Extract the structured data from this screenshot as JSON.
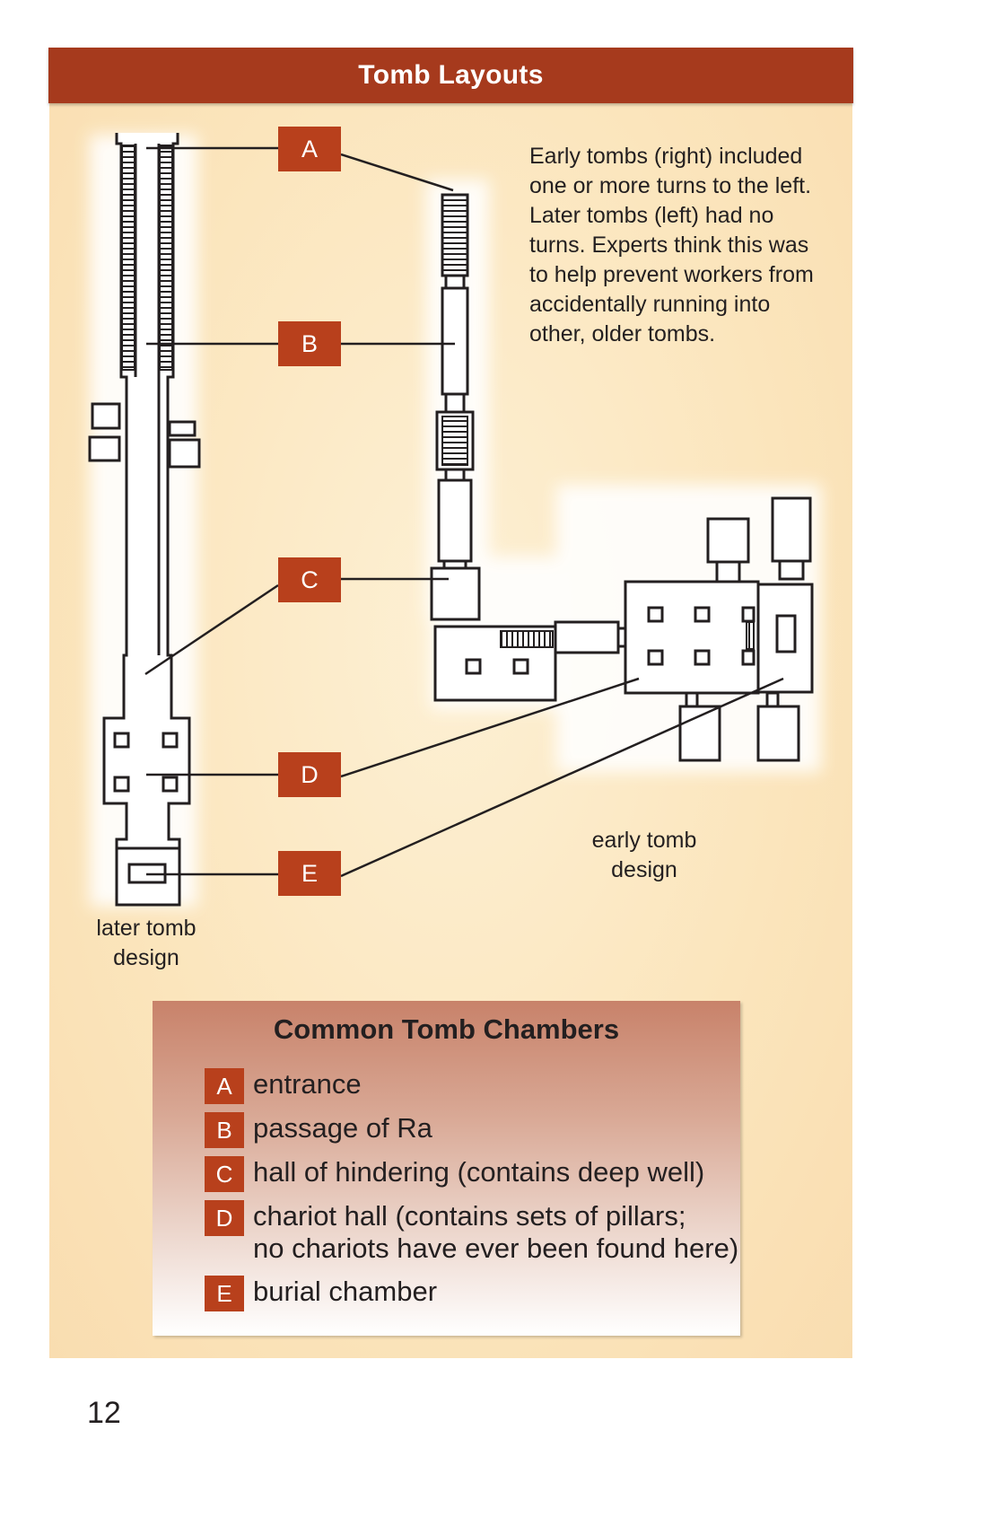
{
  "header": {
    "title": "Tomb Layouts"
  },
  "callouts": {
    "a": "A",
    "b": "B",
    "c": "C",
    "d": "D",
    "e": "E"
  },
  "note": "Early tombs (right) included one or more turns to the left. Later tombs (left) had no turns. Experts think this was to help prevent workers from accidentally running into other, older tombs.",
  "captions": {
    "later_line1": "later tomb",
    "later_line2": "design",
    "early_line1": "early tomb",
    "early_line2": "design"
  },
  "legend": {
    "title": "Common Tomb Chambers",
    "items": [
      {
        "key": "A",
        "text": "entrance"
      },
      {
        "key": "B",
        "text": "passage of Ra"
      },
      {
        "key": "C",
        "text": "hall of hindering (contains deep well)"
      },
      {
        "key": "D",
        "text": "chariot hall (contains sets of pillars;",
        "text2": "no chariots have ever been found here)"
      },
      {
        "key": "E",
        "text": "burial chamber"
      }
    ]
  },
  "page_number": "12",
  "colors": {
    "header": "#a63a1d",
    "callout": "#b8401c",
    "panel": "#fbe5bc",
    "outline": "#231f20"
  }
}
